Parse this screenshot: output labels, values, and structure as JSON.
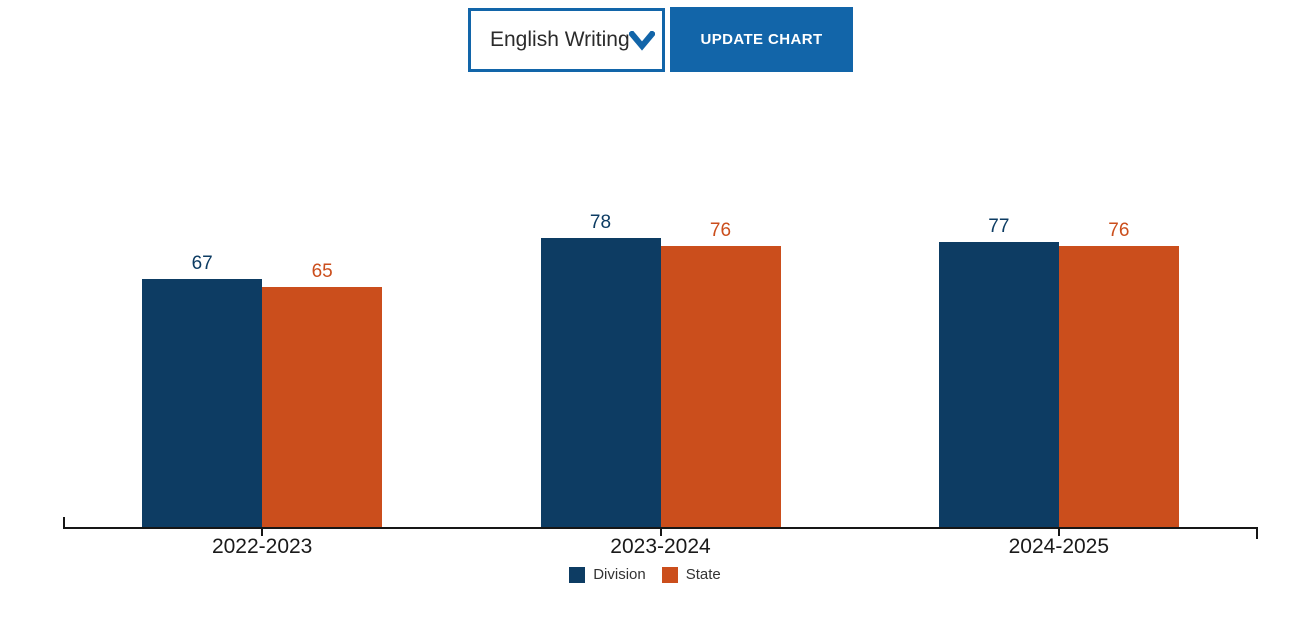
{
  "toolbar": {
    "subject_select": {
      "value": "English Writing"
    },
    "update_button_label": "UPDATE CHART"
  },
  "chart_data": {
    "type": "bar",
    "categories": [
      "2022-2023",
      "2023-2024",
      "2024-2025"
    ],
    "series": [
      {
        "name": "Division",
        "color": "#0d3c63",
        "values": [
          67,
          78,
          77
        ]
      },
      {
        "name": "State",
        "color": "#cb4e1c",
        "values": [
          65,
          76,
          76
        ]
      }
    ],
    "ylim": [
      0,
      100
    ],
    "grid": false,
    "legend_position": "bottom",
    "value_labels": true
  },
  "colors": {
    "accent": "#1265a9",
    "division": "#0d3c63",
    "state": "#cb4e1c",
    "axis": "#161616"
  }
}
